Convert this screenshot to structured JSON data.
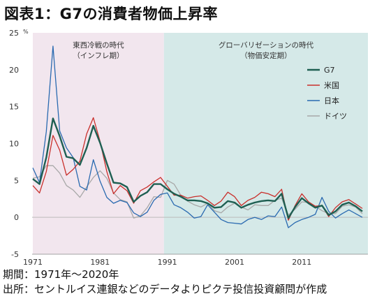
{
  "title": "図表1：G7の消費者物価上昇率",
  "notes": [
    "期間：1971年～2020年",
    "出所：セントルイス連銀などのデータよりピクテ投信投資顧問が作成"
  ],
  "colors": {
    "period1_bg": "#f2e6ee",
    "period2_bg": "#d5e9e8",
    "G7": "#1e5f52",
    "US": "#c9302c",
    "JP": "#2a6ab0",
    "DE": "#a8a8a8"
  },
  "chart_data": {
    "type": "line",
    "ylabel": "%",
    "ylim": [
      -5,
      25
    ],
    "yticks": [
      -5,
      0,
      5,
      10,
      15,
      20,
      25
    ],
    "xlim": [
      1971,
      2020
    ],
    "xticks": [
      1971,
      1981,
      1991,
      2001,
      2011
    ],
    "grid": false,
    "legend": "top-right",
    "shaded_periods": [
      {
        "from": 1971,
        "to": 1990.5,
        "label_lines": [
          "東西冷戦の時代",
          "（インフレ期）"
        ]
      },
      {
        "from": 1990.5,
        "to": 2020,
        "label_lines": [
          "グローバリゼーションの時代",
          "（物価安定期）"
        ]
      }
    ],
    "x": [
      1971,
      1972,
      1973,
      1974,
      1975,
      1976,
      1977,
      1978,
      1979,
      1980,
      1981,
      1982,
      1983,
      1984,
      1985,
      1986,
      1987,
      1988,
      1989,
      1990,
      1991,
      1992,
      1993,
      1994,
      1995,
      1996,
      1997,
      1998,
      1999,
      2000,
      2001,
      2002,
      2003,
      2004,
      2005,
      2006,
      2007,
      2008,
      2009,
      2010,
      2011,
      2012,
      2013,
      2014,
      2015,
      2016,
      2017,
      2018,
      2019,
      2020
    ],
    "series": [
      {
        "name": "G7",
        "key": "G7",
        "values": [
          5.2,
          4.5,
          8.1,
          13.4,
          11.0,
          8.2,
          8.0,
          7.1,
          9.4,
          12.4,
          10.1,
          7.3,
          4.7,
          4.6,
          4.1,
          2.1,
          2.9,
          3.4,
          4.5,
          4.5,
          3.8,
          3.2,
          2.8,
          2.3,
          2.3,
          2.2,
          1.9,
          1.3,
          1.4,
          2.2,
          2.0,
          1.3,
          1.7,
          2.0,
          2.2,
          2.3,
          2.2,
          3.2,
          -0.1,
          1.4,
          2.6,
          1.9,
          1.3,
          1.6,
          0.3,
          0.8,
          1.7,
          2.0,
          1.5,
          0.8
        ]
      },
      {
        "name": "米国",
        "key": "US",
        "values": [
          4.3,
          3.3,
          6.2,
          11.1,
          9.1,
          5.7,
          6.5,
          7.6,
          11.3,
          13.5,
          10.3,
          6.2,
          3.2,
          4.3,
          3.6,
          1.9,
          3.6,
          4.1,
          4.8,
          5.4,
          4.2,
          3.0,
          3.0,
          2.6,
          2.8,
          2.9,
          2.3,
          1.6,
          2.2,
          3.4,
          2.8,
          1.6,
          2.3,
          2.7,
          3.4,
          3.2,
          2.8,
          3.8,
          -0.4,
          1.6,
          3.2,
          2.1,
          1.5,
          1.6,
          0.1,
          1.3,
          2.1,
          2.4,
          1.8,
          1.2
        ]
      },
      {
        "name": "日本",
        "key": "JP",
        "values": [
          6.7,
          4.7,
          11.6,
          23.2,
          11.7,
          9.4,
          8.1,
          4.2,
          3.7,
          7.8,
          4.9,
          2.7,
          1.9,
          2.3,
          2.0,
          0.6,
          0.1,
          0.7,
          2.3,
          3.1,
          3.3,
          1.7,
          1.3,
          0.7,
          -0.1,
          0.1,
          1.7,
          0.7,
          -0.3,
          -0.7,
          -0.8,
          -0.9,
          -0.3,
          0.0,
          -0.3,
          0.2,
          0.1,
          1.4,
          -1.4,
          -0.7,
          -0.3,
          0.0,
          0.4,
          2.7,
          0.8,
          -0.1,
          0.5,
          1.0,
          0.5,
          0.0
        ]
      },
      {
        "name": "ドイツ",
        "key": "DE",
        "values": [
          5.3,
          5.5,
          7.0,
          7.0,
          6.0,
          4.3,
          3.7,
          2.7,
          4.1,
          5.4,
          6.3,
          5.3,
          3.3,
          2.4,
          2.1,
          -0.1,
          0.2,
          1.3,
          2.8,
          2.7,
          5.0,
          4.5,
          3.0,
          2.2,
          1.7,
          1.4,
          1.9,
          0.9,
          0.6,
          1.4,
          1.9,
          1.4,
          1.0,
          1.7,
          1.6,
          1.6,
          2.3,
          2.6,
          0.3,
          1.1,
          2.1,
          2.0,
          1.5,
          0.9,
          0.5,
          0.5,
          1.5,
          1.7,
          1.4,
          0.5
        ]
      }
    ]
  }
}
